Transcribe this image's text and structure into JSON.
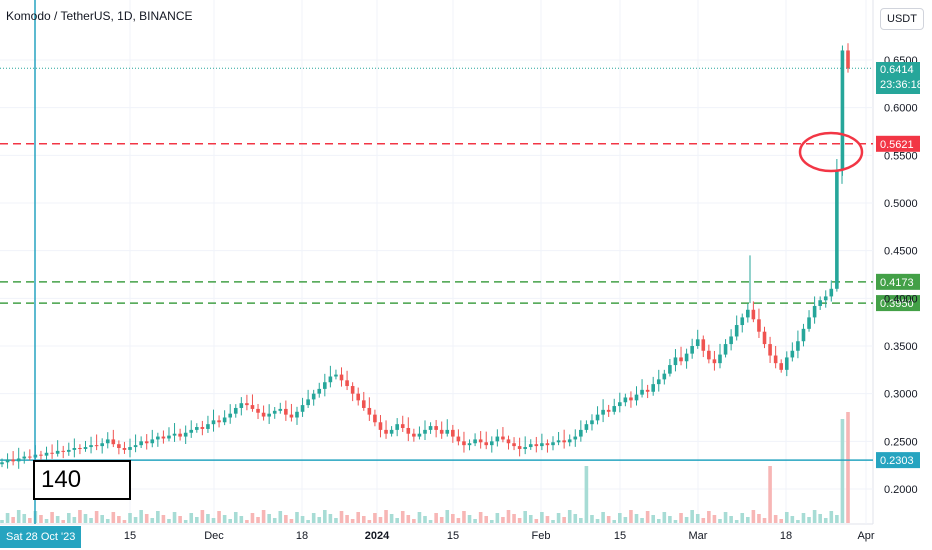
{
  "header": {
    "title": "Komodo / TetherUS, 1D, BINANCE",
    "currency": "USDT"
  },
  "annotation": {
    "count_label": "140"
  },
  "crosshair": {
    "date_label": "Sat 28 Oct '23"
  },
  "last_price": {
    "price": "0.6414",
    "countdown": "23:36:18"
  },
  "levels": [
    {
      "value": 0.5621,
      "label": "0.5621",
      "color": "#f23645",
      "style": "dashed"
    },
    {
      "value": 0.4173,
      "label": "0.4173",
      "color": "#43a047",
      "style": "dashed"
    },
    {
      "value": 0.395,
      "label": "0.3950",
      "color": "#43a047",
      "style": "dashed"
    },
    {
      "value": 0.2303,
      "label": "0.2303",
      "color": "#26a4c0",
      "style": "solid"
    }
  ],
  "colors": {
    "up": "#26a69a",
    "down": "#ef5350",
    "crosshair": "#26a4c0",
    "circle": "#f23645"
  },
  "chart_data": {
    "type": "candlestick",
    "title": "Komodo / TetherUS, 1D, BINANCE",
    "y_ticks": [
      "0.6500",
      "0.6000",
      "0.5500",
      "0.5000",
      "0.4500",
      "0.4000",
      "0.3500",
      "0.3000",
      "0.2500",
      "0.2000"
    ],
    "x_ticks": [
      "15",
      "Dec",
      "18",
      "2024",
      "15",
      "Feb",
      "15",
      "Mar",
      "18",
      "Apr"
    ],
    "ylim": [
      0.2,
      0.65
    ],
    "start_date": "2023-10-28",
    "series": [
      {
        "name": "close",
        "values": [
          0.228,
          0.231,
          0.229,
          0.232,
          0.234,
          0.233,
          0.236,
          0.235,
          0.238,
          0.237,
          0.24,
          0.239,
          0.241,
          0.243,
          0.242,
          0.244,
          0.246,
          0.245,
          0.248,
          0.252,
          0.247,
          0.243,
          0.241,
          0.244,
          0.246,
          0.25,
          0.248,
          0.252,
          0.255,
          0.253,
          0.256,
          0.258,
          0.255,
          0.259,
          0.262,
          0.265,
          0.263,
          0.268,
          0.272,
          0.27,
          0.275,
          0.279,
          0.285,
          0.29,
          0.288,
          0.284,
          0.28,
          0.276,
          0.279,
          0.282,
          0.284,
          0.278,
          0.275,
          0.281,
          0.288,
          0.294,
          0.3,
          0.305,
          0.312,
          0.318,
          0.32,
          0.314,
          0.308,
          0.3,
          0.293,
          0.285,
          0.278,
          0.27,
          0.262,
          0.258,
          0.262,
          0.268,
          0.264,
          0.258,
          0.255,
          0.258,
          0.262,
          0.266,
          0.262,
          0.258,
          0.262,
          0.255,
          0.25,
          0.246,
          0.248,
          0.252,
          0.249,
          0.246,
          0.25,
          0.255,
          0.252,
          0.248,
          0.245,
          0.242,
          0.244,
          0.247,
          0.245,
          0.248,
          0.246,
          0.249,
          0.251,
          0.249,
          0.252,
          0.255,
          0.262,
          0.268,
          0.272,
          0.278,
          0.283,
          0.281,
          0.287,
          0.291,
          0.296,
          0.293,
          0.299,
          0.304,
          0.302,
          0.31,
          0.315,
          0.321,
          0.33,
          0.338,
          0.334,
          0.342,
          0.35,
          0.357,
          0.345,
          0.336,
          0.332,
          0.341,
          0.352,
          0.36,
          0.372,
          0.38,
          0.388,
          0.378,
          0.365,
          0.352,
          0.34,
          0.332,
          0.325,
          0.338,
          0.345,
          0.355,
          0.368,
          0.38,
          0.392,
          0.398,
          0.402,
          0.41,
          0.535,
          0.66,
          0.641
        ]
      }
    ]
  }
}
